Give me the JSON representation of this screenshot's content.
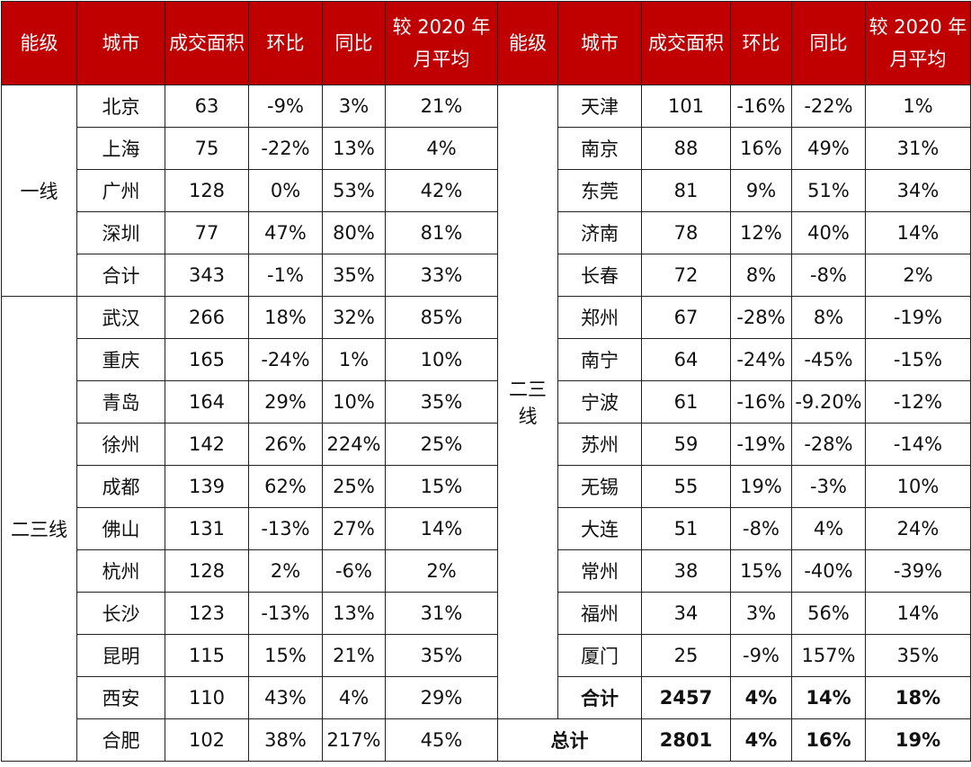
{
  "header": [
    "能级",
    "城市",
    "成交面积",
    "环比",
    "同比",
    "较 2020 年月平均",
    "能级",
    "城市",
    "成交面积",
    "环比",
    "同比",
    "较 2020 年月平均"
  ],
  "left": {
    "tiers": [
      {
        "label": "一线",
        "rows": [
          [
            "北京",
            "63",
            "-9%",
            "3%",
            "21%"
          ],
          [
            "上海",
            "75",
            "-22%",
            "13%",
            "4%"
          ],
          [
            "广州",
            "128",
            "0%",
            "53%",
            "42%"
          ],
          [
            "深圳",
            "77",
            "47%",
            "80%",
            "81%"
          ],
          [
            "合计",
            "343",
            "-1%",
            "35%",
            "33%"
          ]
        ]
      },
      {
        "label": "二三线",
        "rows": [
          [
            "武汉",
            "266",
            "18%",
            "32%",
            "85%"
          ],
          [
            "重庆",
            "165",
            "-24%",
            "1%",
            "10%"
          ],
          [
            "青岛",
            "164",
            "29%",
            "10%",
            "35%"
          ],
          [
            "徐州",
            "142",
            "26%",
            "224%",
            "25%"
          ],
          [
            "成都",
            "139",
            "62%",
            "25%",
            "15%"
          ],
          [
            "佛山",
            "131",
            "-13%",
            "27%",
            "14%"
          ],
          [
            "杭州",
            "128",
            "2%",
            "-6%",
            "2%"
          ],
          [
            "长沙",
            "123",
            "-13%",
            "13%",
            "31%"
          ],
          [
            "昆明",
            "115",
            "15%",
            "21%",
            "35%"
          ],
          [
            "西安",
            "110",
            "43%",
            "4%",
            "29%"
          ],
          [
            "合肥",
            "102",
            "38%",
            "217%",
            "45%"
          ]
        ]
      }
    ]
  },
  "right": {
    "tier": "二三线",
    "rows": [
      [
        "天津",
        "101",
        "-16%",
        "-22%",
        "1%"
      ],
      [
        "南京",
        "88",
        "16%",
        "49%",
        "31%"
      ],
      [
        "东莞",
        "81",
        "9%",
        "51%",
        "34%"
      ],
      [
        "济南",
        "78",
        "12%",
        "40%",
        "14%"
      ],
      [
        "长春",
        "72",
        "8%",
        "-8%",
        "2%"
      ],
      [
        "郑州",
        "67",
        "-28%",
        "8%",
        "-19%"
      ],
      [
        "南宁",
        "64",
        "-24%",
        "-45%",
        "-15%"
      ],
      [
        "宁波",
        "61",
        "-16%",
        "-9.20%",
        "-12%"
      ],
      [
        "苏州",
        "59",
        "-19%",
        "-28%",
        "-14%"
      ],
      [
        "无锡",
        "55",
        "19%",
        "-3%",
        "10%"
      ],
      [
        "大连",
        "51",
        "-8%",
        "4%",
        "24%"
      ],
      [
        "常州",
        "38",
        "15%",
        "-40%",
        "-39%"
      ],
      [
        "福州",
        "34",
        "3%",
        "56%",
        "14%"
      ],
      [
        "厦门",
        "25",
        "-9%",
        "157%",
        "35%"
      ]
    ],
    "subtotal": [
      "合计",
      "2457",
      "4%",
      "14%",
      "18%"
    ],
    "total": [
      "总计",
      "2801",
      "4%",
      "16%",
      "19%"
    ]
  }
}
